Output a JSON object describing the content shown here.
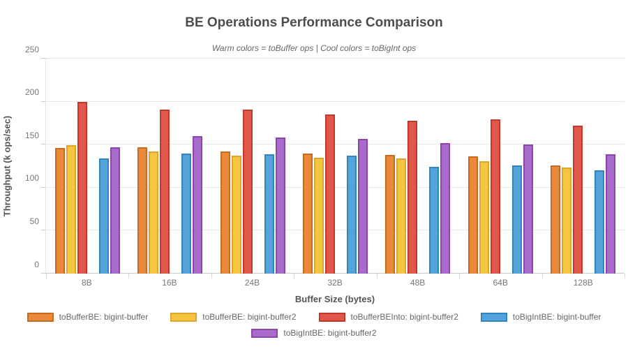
{
  "title": "BE Operations Performance Comparison",
  "subtitle": "Warm colors = toBuffer ops | Cool colors = toBigInt ops",
  "axes": {
    "x_title": "Buffer Size (bytes)",
    "y_title": "Throughput (k ops/sec)"
  },
  "chart_data": {
    "type": "bar",
    "title": "BE Operations Performance Comparison",
    "subtitle": "Warm colors = toBuffer ops | Cool colors = toBigInt ops",
    "xlabel": "Buffer Size (bytes)",
    "ylabel": "Throughput (k ops/sec)",
    "categories": [
      "8B",
      "16B",
      "24B",
      "32B",
      "48B",
      "64B",
      "128B"
    ],
    "series": [
      {
        "name": "toBufferBE: bigint-buffer",
        "fill": "#E8893C",
        "border": "#C76B1E",
        "values": [
          146,
          147,
          142,
          140,
          138,
          136,
          126
        ]
      },
      {
        "name": "toBufferBE: bigint-buffer2",
        "fill": "#F5C63F",
        "border": "#E0A32E",
        "values": [
          149,
          142,
          137,
          135,
          134,
          131,
          123
        ]
      },
      {
        "name": "toBufferBEInto: bigint-buffer2",
        "fill": "#E2574B",
        "border": "#C0392B",
        "values": [
          200,
          191,
          191,
          185,
          178,
          179,
          172
        ]
      },
      {
        "name": "toBigIntBE: bigint-buffer",
        "fill": "#54A4DB",
        "border": "#2E86C1",
        "values": [
          134,
          140,
          139,
          137,
          124,
          126,
          120
        ]
      },
      {
        "name": "toBigIntBE: bigint-buffer2",
        "fill": "#A76BC9",
        "border": "#8E44AD",
        "values": [
          147,
          160,
          158,
          157,
          152,
          150,
          139
        ]
      }
    ],
    "gap_after_series_index": 2,
    "ylim": [
      0,
      250
    ],
    "yticks": [
      0,
      50,
      100,
      150,
      200,
      250
    ],
    "grid": true,
    "legend_position": "bottom",
    "legend_rows": [
      4,
      1
    ]
  }
}
